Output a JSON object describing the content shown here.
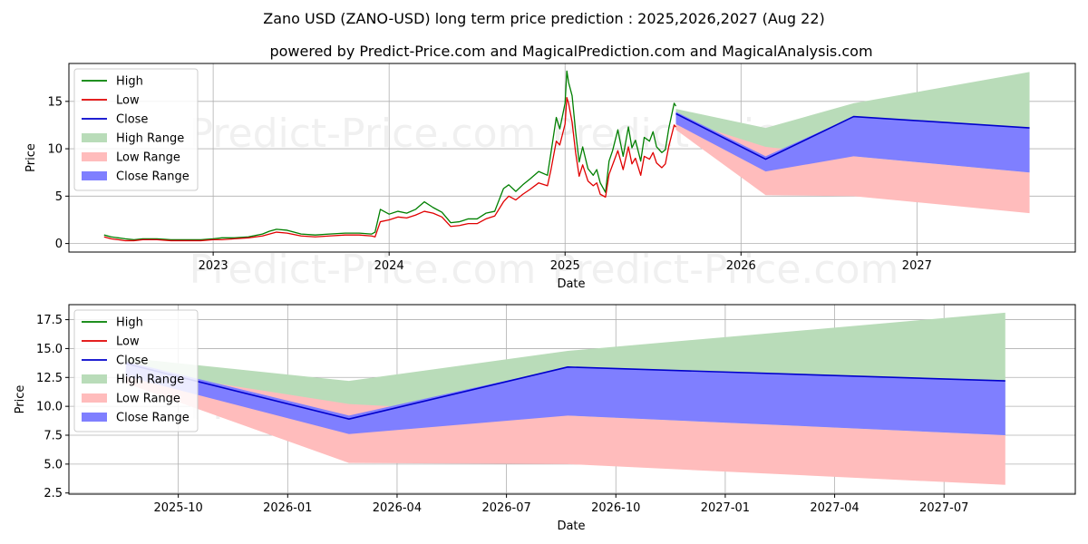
{
  "title": "Zano USD (ZANO-USD) long term price prediction : 2025,2026,2027 (Aug 22)",
  "subtitle": "powered by Predict-Price.com and MagicalPrediction.com and MagicalAnalysis.com",
  "watermark": "Predict-Price.com",
  "colors": {
    "high": "#007f00",
    "low": "#e00000",
    "close": "#0000cc",
    "high_range": "#b9dcb9",
    "low_range": "#ffbcbc",
    "close_range": "#7f7fff"
  },
  "legend": [
    "High",
    "Low",
    "Close",
    "High Range",
    "Low Range",
    "Close Range"
  ],
  "chart_data": [
    {
      "type": "line",
      "xlabel": "Date",
      "ylabel": "Price",
      "legend_position": "top-left",
      "grid": true,
      "xlim": [
        2022.18,
        2027.9
      ],
      "ylim": [
        -0.9,
        19.0
      ],
      "x_ticks": [
        2023,
        2024,
        2025,
        2026,
        2027
      ],
      "x_tick_labels": [
        "2023",
        "2024",
        "2025",
        "2026",
        "2027"
      ],
      "y_ticks": [
        0,
        5,
        10,
        15
      ],
      "series": [
        {
          "name": "High",
          "x": [
            2022.38,
            2022.42,
            2022.46,
            2022.5,
            2022.55,
            2022.6,
            2022.68,
            2022.76,
            2022.85,
            2022.93,
            2023.0,
            2023.05,
            2023.12,
            2023.2,
            2023.28,
            2023.32,
            2023.36,
            2023.42,
            2023.5,
            2023.58,
            2023.66,
            2023.75,
            2023.83,
            2023.9,
            2023.92,
            2023.95,
            2024.0,
            2024.05,
            2024.1,
            2024.15,
            2024.2,
            2024.25,
            2024.3,
            2024.35,
            2024.4,
            2024.45,
            2024.5,
            2024.55,
            2024.6,
            2024.65,
            2024.68,
            2024.72,
            2024.76,
            2024.8,
            2024.85,
            2024.9,
            2024.92,
            2024.95,
            2024.97,
            2025.0,
            2025.01,
            2025.02,
            2025.04,
            2025.06,
            2025.08,
            2025.1,
            2025.13,
            2025.16,
            2025.18,
            2025.2,
            2025.23,
            2025.25,
            2025.27,
            2025.3,
            2025.33,
            2025.36,
            2025.38,
            2025.4,
            2025.43,
            2025.45,
            2025.48,
            2025.5,
            2025.52,
            2025.55,
            2025.57,
            2025.59,
            2025.62,
            2025.63
          ],
          "values": [
            0.9,
            0.7,
            0.6,
            0.5,
            0.4,
            0.5,
            0.5,
            0.4,
            0.4,
            0.4,
            0.5,
            0.6,
            0.6,
            0.7,
            1.0,
            1.3,
            1.5,
            1.4,
            1.0,
            0.9,
            1.0,
            1.1,
            1.1,
            1.0,
            1.2,
            3.6,
            3.1,
            3.4,
            3.2,
            3.6,
            4.4,
            3.8,
            3.3,
            2.2,
            2.3,
            2.6,
            2.6,
            3.2,
            3.4,
            5.8,
            6.2,
            5.5,
            6.2,
            6.8,
            7.6,
            7.2,
            9.6,
            13.3,
            12.1,
            14.8,
            18.2,
            17.0,
            15.6,
            11.8,
            8.6,
            10.2,
            7.9,
            7.2,
            7.8,
            6.4,
            5.4,
            8.7,
            9.8,
            12.0,
            9.2,
            12.3,
            10.1,
            10.9,
            8.7,
            11.2,
            10.8,
            11.8,
            10.2,
            9.6,
            9.9,
            12.2,
            14.8,
            14.5
          ]
        },
        {
          "name": "Low",
          "x": [
            2022.38,
            2022.42,
            2022.46,
            2022.5,
            2022.55,
            2022.6,
            2022.68,
            2022.76,
            2022.85,
            2022.93,
            2023.0,
            2023.05,
            2023.12,
            2023.2,
            2023.28,
            2023.32,
            2023.36,
            2023.42,
            2023.5,
            2023.58,
            2023.66,
            2023.75,
            2023.83,
            2023.9,
            2023.92,
            2023.95,
            2024.0,
            2024.05,
            2024.1,
            2024.15,
            2024.2,
            2024.25,
            2024.3,
            2024.35,
            2024.4,
            2024.45,
            2024.5,
            2024.55,
            2024.6,
            2024.65,
            2024.68,
            2024.72,
            2024.76,
            2024.8,
            2024.85,
            2024.9,
            2024.92,
            2024.95,
            2024.97,
            2025.0,
            2025.01,
            2025.02,
            2025.04,
            2025.06,
            2025.08,
            2025.1,
            2025.13,
            2025.16,
            2025.18,
            2025.2,
            2025.23,
            2025.25,
            2025.27,
            2025.3,
            2025.33,
            2025.36,
            2025.38,
            2025.4,
            2025.43,
            2025.45,
            2025.48,
            2025.5,
            2025.52,
            2025.55,
            2025.57,
            2025.59,
            2025.62,
            2025.63
          ],
          "values": [
            0.7,
            0.5,
            0.4,
            0.3,
            0.3,
            0.4,
            0.4,
            0.3,
            0.3,
            0.3,
            0.4,
            0.4,
            0.5,
            0.6,
            0.8,
            1.0,
            1.2,
            1.1,
            0.8,
            0.7,
            0.8,
            0.9,
            0.9,
            0.8,
            0.7,
            2.3,
            2.5,
            2.8,
            2.7,
            3.0,
            3.4,
            3.2,
            2.8,
            1.8,
            1.9,
            2.1,
            2.1,
            2.6,
            2.9,
            4.4,
            5.0,
            4.6,
            5.2,
            5.7,
            6.4,
            6.1,
            7.8,
            10.8,
            10.4,
            12.6,
            15.4,
            14.8,
            12.8,
            9.6,
            7.1,
            8.3,
            6.6,
            6.1,
            6.4,
            5.2,
            4.9,
            7.3,
            8.3,
            9.8,
            7.8,
            10.2,
            8.4,
            9.0,
            7.2,
            9.2,
            8.9,
            9.6,
            8.5,
            8.0,
            8.4,
            10.3,
            12.5,
            12.3
          ]
        },
        {
          "name": "Close",
          "x": [
            2025.63,
            2026.14,
            2026.64,
            2027.64
          ],
          "values": [
            13.7,
            8.9,
            13.4,
            12.2
          ]
        }
      ],
      "ranges": [
        {
          "name": "High Range",
          "x": [
            2025.63,
            2026.14,
            2026.64,
            2027.64
          ],
          "upper": [
            14.2,
            12.2,
            14.8,
            18.1
          ],
          "lower": [
            12.5,
            7.6,
            9.2,
            7.5
          ]
        },
        {
          "name": "Low Range",
          "x": [
            2025.63,
            2026.14,
            2026.64,
            2027.64
          ],
          "upper": [
            13.2,
            10.2,
            9.2,
            7.5
          ],
          "lower": [
            12.0,
            5.1,
            5.0,
            3.2
          ]
        },
        {
          "name": "Close Range",
          "x": [
            2025.63,
            2026.14,
            2026.64,
            2027.64
          ],
          "upper": [
            13.9,
            9.2,
            13.4,
            12.2
          ],
          "lower": [
            12.6,
            7.6,
            9.2,
            7.5
          ]
        }
      ]
    },
    {
      "type": "line",
      "xlabel": "Date",
      "ylabel": "Price",
      "legend_position": "top-left",
      "grid": true,
      "xlim": [
        2025.5,
        2027.8
      ],
      "ylim": [
        2.4,
        18.8
      ],
      "x_ticks": [
        2025.75,
        2026.0,
        2026.25,
        2026.5,
        2026.75,
        2027.0,
        2027.25,
        2027.5
      ],
      "x_tick_labels": [
        "2025-10",
        "2026-01",
        "2026-04",
        "2026-07",
        "2026-10",
        "2027-01",
        "2027-04",
        "2027-07"
      ],
      "y_ticks": [
        2.5,
        5.0,
        7.5,
        10.0,
        12.5,
        15.0,
        17.5
      ],
      "y_tick_labels": [
        "2.5",
        "5.0",
        "7.5",
        "10.0",
        "12.5",
        "15.0",
        "17.5"
      ],
      "series": [
        {
          "name": "Close",
          "x": [
            2025.63,
            2026.14,
            2026.64,
            2027.64
          ],
          "values": [
            13.7,
            8.9,
            13.4,
            12.2
          ]
        }
      ],
      "ranges": [
        {
          "name": "High Range",
          "x": [
            2025.63,
            2026.14,
            2026.64,
            2027.64
          ],
          "upper": [
            14.2,
            12.2,
            14.8,
            18.1
          ],
          "lower": [
            12.5,
            7.6,
            9.2,
            7.5
          ]
        },
        {
          "name": "Low Range",
          "x": [
            2025.63,
            2026.14,
            2026.64,
            2027.64
          ],
          "upper": [
            13.2,
            10.2,
            9.2,
            7.5
          ],
          "lower": [
            12.0,
            5.1,
            5.0,
            3.2
          ]
        },
        {
          "name": "Close Range",
          "x": [
            2025.63,
            2026.14,
            2026.64,
            2027.64
          ],
          "upper": [
            13.9,
            9.2,
            13.4,
            12.2
          ],
          "lower": [
            12.6,
            7.6,
            9.2,
            7.5
          ]
        }
      ]
    }
  ]
}
